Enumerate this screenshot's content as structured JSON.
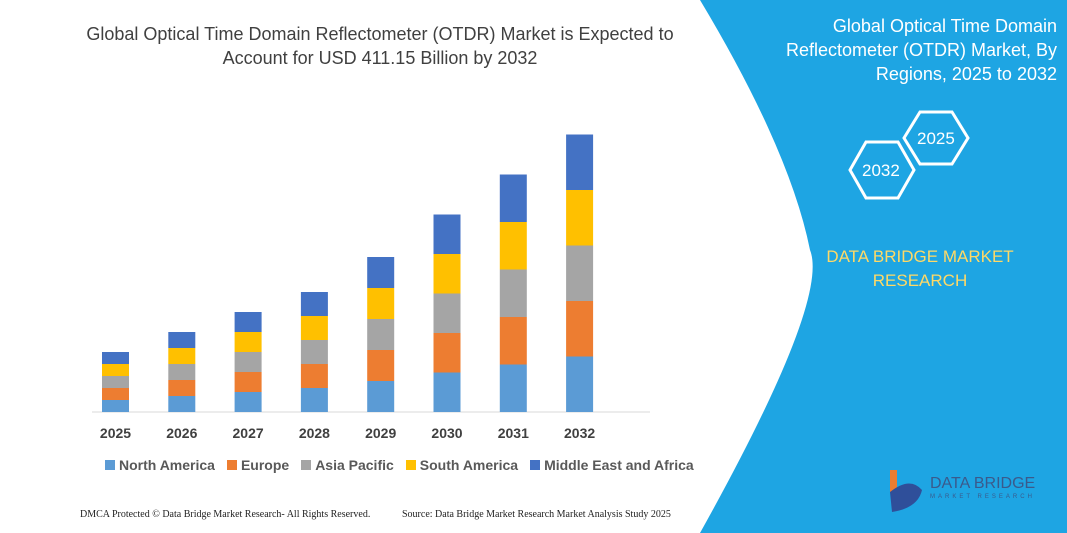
{
  "title": "Global Optical Time Domain Reflectometer (OTDR) Market is Expected to Account for USD 411.15 Billion by 2032",
  "side_panel": {
    "title": "Global Optical Time Domain Reflectometer (OTDR) Market, By Regions, 2025 to 2032",
    "hex_left": "2032",
    "hex_right": "2025",
    "brand": "DATA BRIDGE MARKET RESEARCH",
    "logo_text": "DATA BRIDGE",
    "logo_sub": "MARKET RESEARCH",
    "color": "#1ea5e3"
  },
  "footer": {
    "left": "DMCA Protected © Data Bridge Market Research-  All Rights Reserved.",
    "right": "Source: Data Bridge Market Research  Market Analysis Study 2025"
  },
  "chart_data": {
    "type": "bar",
    "stacked": true,
    "grid": false,
    "legend_placement": "bottom",
    "categories": [
      "2025",
      "2026",
      "2027",
      "2028",
      "2029",
      "2030",
      "2031",
      "2032"
    ],
    "series": [
      {
        "name": "North America",
        "color": "#5b9bd5",
        "values": [
          12,
          16,
          20,
          24,
          31,
          39.5,
          47.5,
          55.5
        ]
      },
      {
        "name": "Europe",
        "color": "#ed7d31",
        "values": [
          12,
          16,
          20,
          24,
          31,
          39.5,
          47.5,
          55.5
        ]
      },
      {
        "name": "Asia Pacific",
        "color": "#a5a5a5",
        "values": [
          12,
          16,
          20,
          24,
          31,
          39.5,
          47.5,
          55.5
        ]
      },
      {
        "name": "South America",
        "color": "#ffc000",
        "values": [
          12,
          16,
          20,
          24,
          31,
          39.5,
          47.5,
          55.5
        ]
      },
      {
        "name": "Middle East and Africa",
        "color": "#4472c4",
        "values": [
          12,
          16,
          20,
          24,
          31,
          39.5,
          47.5,
          55.5
        ]
      }
    ]
  }
}
